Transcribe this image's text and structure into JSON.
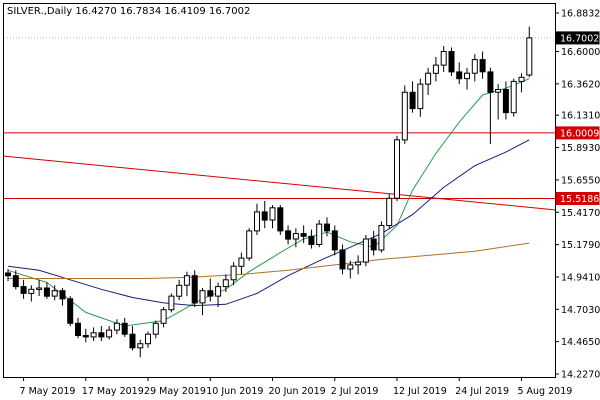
{
  "chart_data": {
    "type": "candlestick",
    "title": "SILVER.,Daily  16.4270 16.7834 16.4109 16.7002",
    "symbol": "SILVER.",
    "timeframe": "Daily",
    "last_bar": {
      "open": 16.427,
      "high": 16.7834,
      "low": 16.4109,
      "close": 16.7002
    },
    "y_ticks": [
      "16.8832",
      "16.6000",
      "16.3620",
      "16.1310",
      "15.8930",
      "15.6550",
      "15.4170",
      "15.1790",
      "14.9410",
      "14.7030",
      "14.4650",
      "14.2270"
    ],
    "ylim": [
      14.227,
      16.8832
    ],
    "x_ticks": [
      {
        "label": "7 May 2019",
        "bar": 2
      },
      {
        "label": "17 May 2019",
        "bar": 10
      },
      {
        "label": "29 May 2019",
        "bar": 18
      },
      {
        "label": "10 Jun 2019",
        "bar": 26
      },
      {
        "label": "20 Jun 2019",
        "bar": 34
      },
      {
        "label": "2 Jul 2019",
        "bar": 42
      },
      {
        "label": "12 Jul 2019",
        "bar": 50
      },
      {
        "label": "24 Jul 2019",
        "bar": 58
      },
      {
        "label": "5 Aug 2019",
        "bar": 66
      }
    ],
    "current_price": "16.7002",
    "horizontal_lines": [
      {
        "value": 16.0009,
        "label": "16.0009",
        "color": "#d40000"
      },
      {
        "value": 15.5186,
        "label": "15.5186",
        "color": "#d40000"
      }
    ],
    "trendline": {
      "from": [
        0,
        15.83
      ],
      "to": [
        70,
        15.435
      ],
      "color": "#d40000"
    },
    "bullish_color": "#ffffff",
    "bearish_color": "#000000",
    "ohlc": [
      [
        14.97,
        15.0,
        14.91,
        14.95
      ],
      [
        14.95,
        14.99,
        14.85,
        14.87
      ],
      [
        14.87,
        14.92,
        14.78,
        14.82
      ],
      [
        14.82,
        14.88,
        14.76,
        14.85
      ],
      [
        14.85,
        14.92,
        14.8,
        14.86
      ],
      [
        14.86,
        14.9,
        14.78,
        14.8
      ],
      [
        14.8,
        14.88,
        14.77,
        14.84
      ],
      [
        14.84,
        14.86,
        14.73,
        14.78
      ],
      [
        14.78,
        14.8,
        14.58,
        14.6
      ],
      [
        14.6,
        14.64,
        14.49,
        14.51
      ],
      [
        14.51,
        14.56,
        14.46,
        14.5
      ],
      [
        14.5,
        14.57,
        14.47,
        14.53
      ],
      [
        14.53,
        14.58,
        14.47,
        14.5
      ],
      [
        14.5,
        14.58,
        14.48,
        14.55
      ],
      [
        14.55,
        14.63,
        14.52,
        14.6
      ],
      [
        14.6,
        14.64,
        14.5,
        14.52
      ],
      [
        14.52,
        14.58,
        14.4,
        14.42
      ],
      [
        14.42,
        14.48,
        14.35,
        14.45
      ],
      [
        14.45,
        14.54,
        14.42,
        14.52
      ],
      [
        14.52,
        14.62,
        14.49,
        14.6
      ],
      [
        14.6,
        14.72,
        14.57,
        14.7
      ],
      [
        14.7,
        14.82,
        14.68,
        14.8
      ],
      [
        14.8,
        14.92,
        14.77,
        14.88
      ],
      [
        14.88,
        14.98,
        14.8,
        14.95
      ],
      [
        14.95,
        14.99,
        14.72,
        14.75
      ],
      [
        14.75,
        14.86,
        14.66,
        14.84
      ],
      [
        14.84,
        14.93,
        14.76,
        14.8
      ],
      [
        14.8,
        14.9,
        14.72,
        14.87
      ],
      [
        14.87,
        14.96,
        14.83,
        14.92
      ],
      [
        14.92,
        15.05,
        14.88,
        15.02
      ],
      [
        15.02,
        15.12,
        14.96,
        15.08
      ],
      [
        15.08,
        15.3,
        15.06,
        15.28
      ],
      [
        15.28,
        15.48,
        15.25,
        15.42
      ],
      [
        15.42,
        15.5,
        15.3,
        15.36
      ],
      [
        15.36,
        15.47,
        15.3,
        15.45
      ],
      [
        15.45,
        15.47,
        15.25,
        15.28
      ],
      [
        15.28,
        15.32,
        15.18,
        15.22
      ],
      [
        15.22,
        15.3,
        15.16,
        15.26
      ],
      [
        15.26,
        15.32,
        15.19,
        15.24
      ],
      [
        15.24,
        15.29,
        15.15,
        15.18
      ],
      [
        15.18,
        15.36,
        15.16,
        15.33
      ],
      [
        15.33,
        15.38,
        15.24,
        15.28
      ],
      [
        15.28,
        15.32,
        15.1,
        15.14
      ],
      [
        15.14,
        15.18,
        14.96,
        15.0
      ],
      [
        15.0,
        15.06,
        14.93,
        15.03
      ],
      [
        15.03,
        15.1,
        14.96,
        15.05
      ],
      [
        15.05,
        15.25,
        15.02,
        15.22
      ],
      [
        15.22,
        15.28,
        15.1,
        15.14
      ],
      [
        15.14,
        15.35,
        15.12,
        15.32
      ],
      [
        15.32,
        15.55,
        15.3,
        15.52
      ],
      [
        15.52,
        15.98,
        15.5,
        15.95
      ],
      [
        15.95,
        16.35,
        15.92,
        16.3
      ],
      [
        16.3,
        16.38,
        16.15,
        16.18
      ],
      [
        16.18,
        16.4,
        16.12,
        16.36
      ],
      [
        16.36,
        16.48,
        16.28,
        16.44
      ],
      [
        16.44,
        16.56,
        16.38,
        16.5
      ],
      [
        16.5,
        16.64,
        16.45,
        16.6
      ],
      [
        16.6,
        16.63,
        16.42,
        16.45
      ],
      [
        16.45,
        16.52,
        16.36,
        16.4
      ],
      [
        16.4,
        16.48,
        16.32,
        16.44
      ],
      [
        16.44,
        16.58,
        16.38,
        16.54
      ],
      [
        16.54,
        16.6,
        16.4,
        16.45
      ],
      [
        16.45,
        16.48,
        15.92,
        16.3
      ],
      [
        16.3,
        16.36,
        16.1,
        16.32
      ],
      [
        16.32,
        16.38,
        16.1,
        16.15
      ],
      [
        16.15,
        16.4,
        16.12,
        16.38
      ],
      [
        16.38,
        16.44,
        16.3,
        16.41
      ],
      [
        16.427,
        16.7834,
        16.4109,
        16.7002
      ]
    ],
    "moving_averages": [
      {
        "color": "#2e9a4e",
        "values": [
          [
            0,
            14.99
          ],
          [
            5,
            14.9
          ],
          [
            10,
            14.68
          ],
          [
            15,
            14.58
          ],
          [
            20,
            14.62
          ],
          [
            25,
            14.78
          ],
          [
            28,
            14.85
          ],
          [
            31,
            14.98
          ],
          [
            35,
            15.12
          ],
          [
            38,
            15.22
          ],
          [
            41,
            15.27
          ],
          [
            44,
            15.2
          ],
          [
            47,
            15.16
          ],
          [
            50,
            15.32
          ],
          [
            52,
            15.58
          ],
          [
            55,
            15.85
          ],
          [
            58,
            16.08
          ],
          [
            61,
            16.28
          ],
          [
            64,
            16.33
          ],
          [
            67,
            16.4
          ]
        ]
      },
      {
        "color": "#1c1c7f",
        "values": [
          [
            0,
            15.02
          ],
          [
            4,
            14.99
          ],
          [
            8,
            14.92
          ],
          [
            12,
            14.85
          ],
          [
            16,
            14.79
          ],
          [
            20,
            14.75
          ],
          [
            24,
            14.73
          ],
          [
            28,
            14.74
          ],
          [
            32,
            14.82
          ],
          [
            36,
            14.95
          ],
          [
            40,
            15.06
          ],
          [
            44,
            15.16
          ],
          [
            48,
            15.26
          ],
          [
            52,
            15.4
          ],
          [
            56,
            15.6
          ],
          [
            60,
            15.76
          ],
          [
            64,
            15.86
          ],
          [
            67,
            15.95
          ]
        ]
      },
      {
        "color": "#b0702a",
        "values": [
          [
            0,
            14.93
          ],
          [
            6,
            14.93
          ],
          [
            12,
            14.93
          ],
          [
            18,
            14.93
          ],
          [
            24,
            14.94
          ],
          [
            30,
            14.96
          ],
          [
            36,
            14.99
          ],
          [
            42,
            15.03
          ],
          [
            48,
            15.07
          ],
          [
            54,
            15.1
          ],
          [
            60,
            15.13
          ],
          [
            67,
            15.19
          ]
        ]
      }
    ]
  }
}
